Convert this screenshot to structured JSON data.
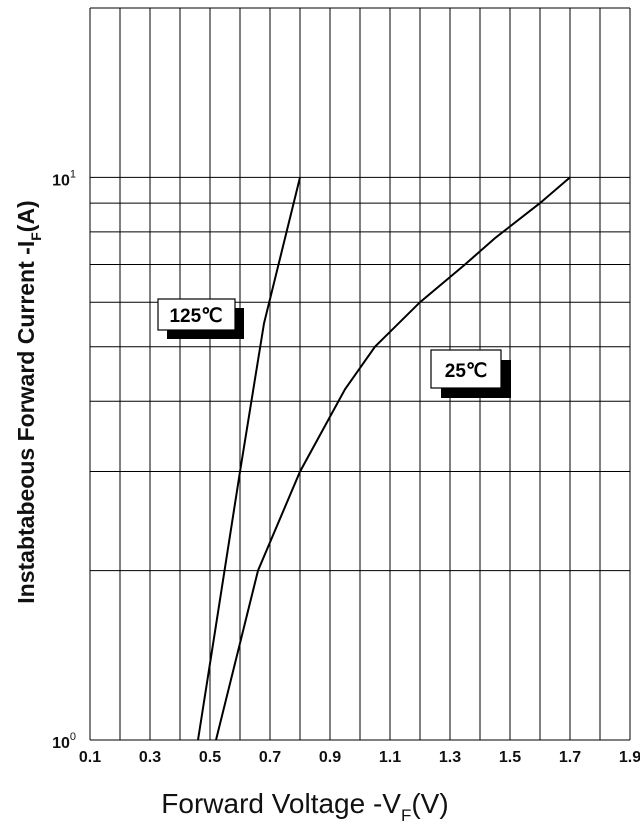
{
  "chart_data": {
    "type": "line",
    "xlabel": {
      "main": "Forward Voltage -V",
      "sub": "F",
      "tail": "(V)"
    },
    "ylabel": {
      "main": "Instabtabeous Forward Current -I",
      "sub": "F",
      "tail": "(A)"
    },
    "x_ticks": [
      "0.1",
      "0.3",
      "0.5",
      "0.7",
      "0.9",
      "1.1",
      "1.3",
      "1.5",
      "1.7",
      "1.9"
    ],
    "xlim": [
      0.1,
      1.9
    ],
    "y_scale": "log",
    "ylim": [
      1,
      20
    ],
    "y_ticks": [
      {
        "value": 1,
        "base": "10",
        "exp": "0"
      },
      {
        "value": 10,
        "base": "10",
        "exp": "1"
      }
    ],
    "grid": true,
    "series": [
      {
        "name": "125℃",
        "x": [
          0.46,
          0.52,
          0.6,
          0.68,
          0.8
        ],
        "y": [
          1,
          1.6,
          3,
          5.5,
          10
        ]
      },
      {
        "name": "25℃",
        "x": [
          0.52,
          0.66,
          0.8,
          0.95,
          1.05,
          1.2,
          1.35,
          1.45,
          1.6,
          1.7
        ],
        "y": [
          1,
          2,
          3,
          4.2,
          5,
          6,
          7,
          7.8,
          9,
          10
        ]
      }
    ]
  }
}
